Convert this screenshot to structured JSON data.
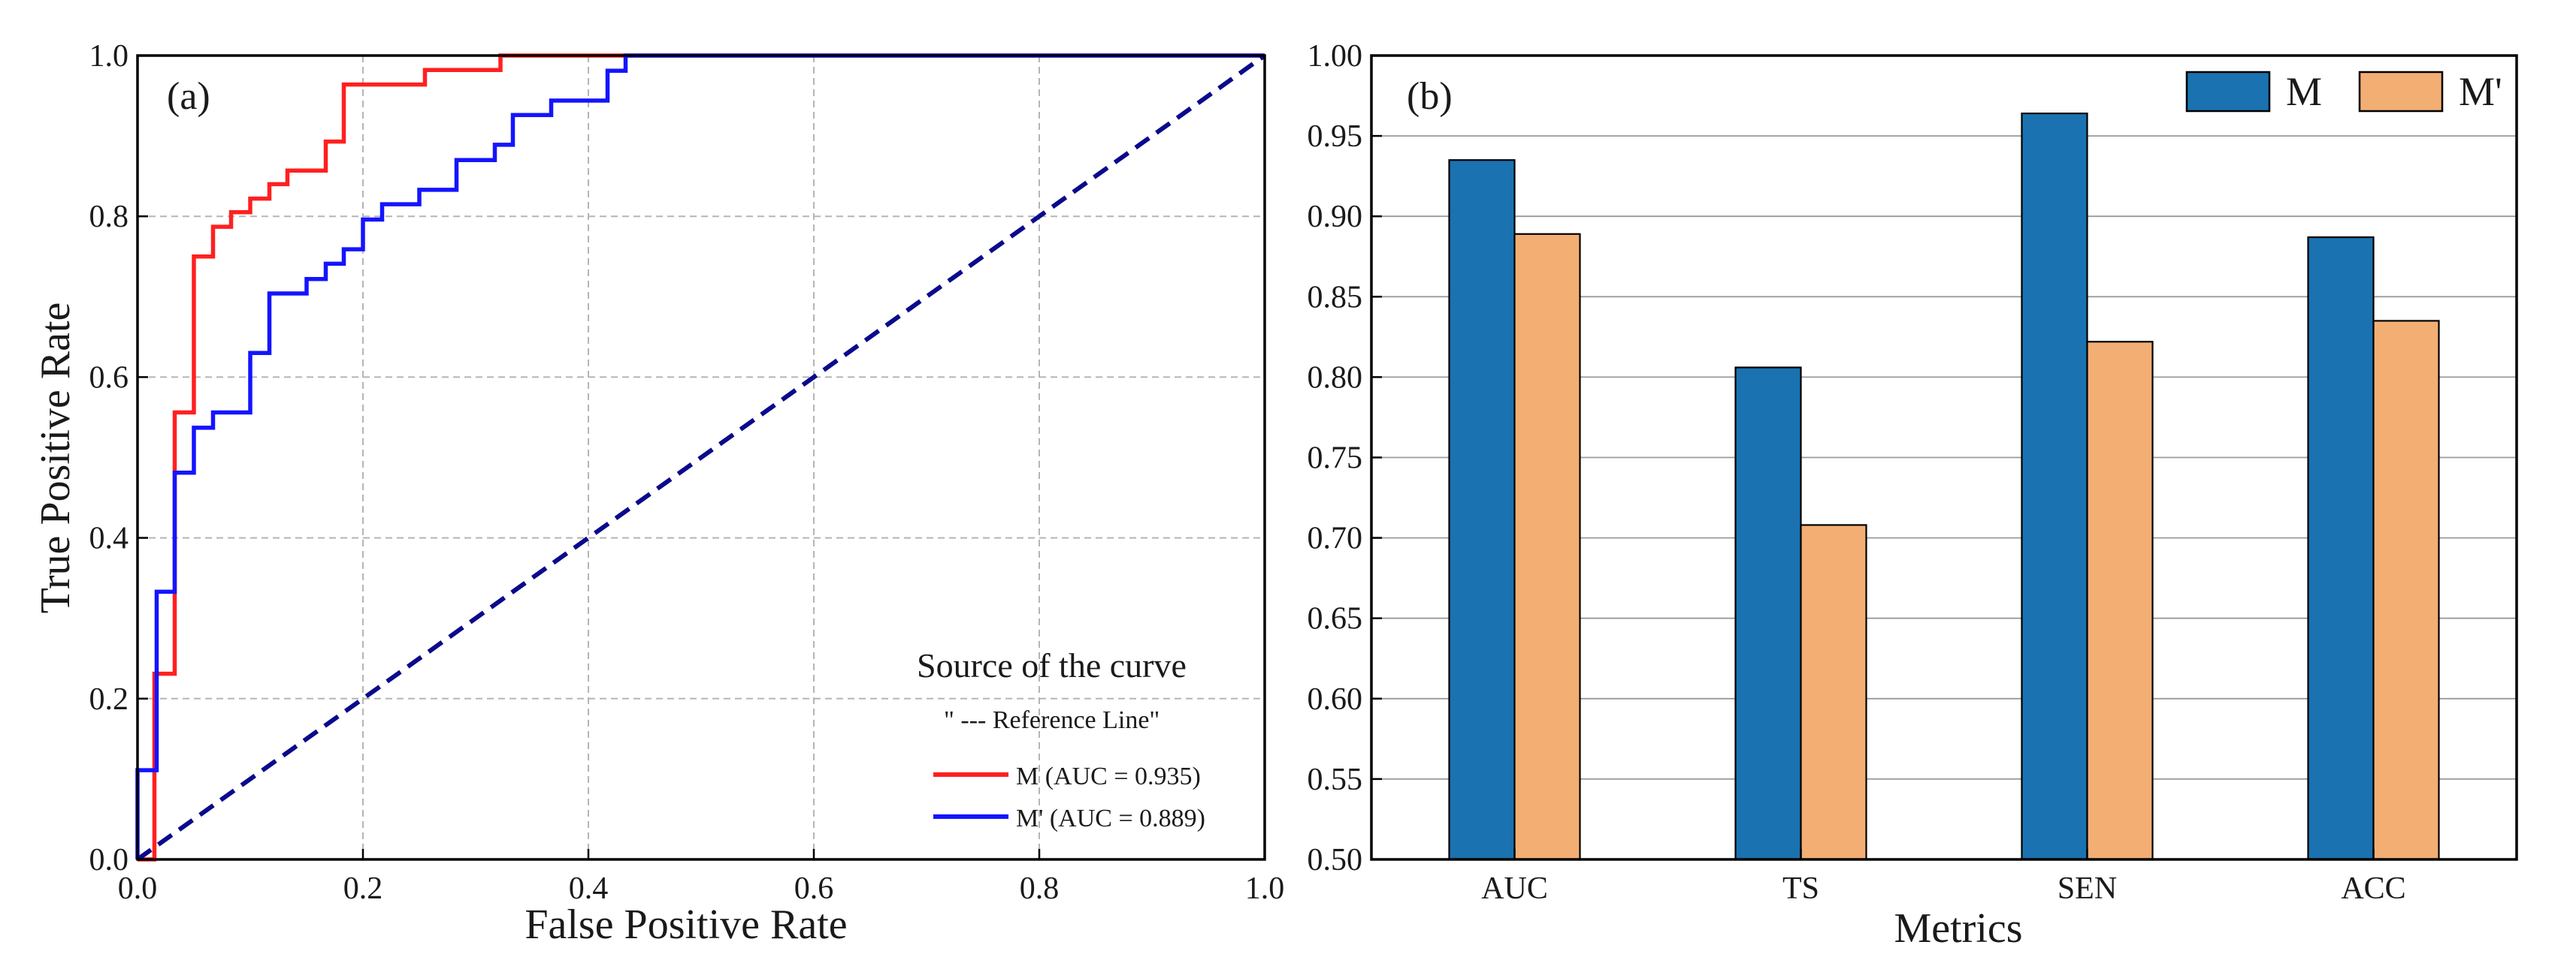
{
  "chart_data": [
    {
      "panel_label": "(a)",
      "type": "line",
      "xlabel": "False Positive Rate",
      "ylabel": "True Positive Rate",
      "xlim": [
        0.0,
        1.0
      ],
      "ylim": [
        0.0,
        1.0
      ],
      "xticks": [
        0.0,
        0.2,
        0.4,
        0.6,
        0.8,
        1.0
      ],
      "xtick_labels": [
        "0.0",
        "0.2",
        "0.4",
        "0.6",
        "0.8",
        "1.0"
      ],
      "yticks": [
        0.0,
        0.2,
        0.4,
        0.6,
        0.8,
        1.0
      ],
      "ytick_labels": [
        "0.0",
        "0.2",
        "0.4",
        "0.6",
        "0.8",
        "1.0"
      ],
      "grid": true,
      "legend": {
        "title": "Source of the curve",
        "reference_text": "\" --- Reference Line\"",
        "placement": "bottom-right",
        "entries": [
          "M (AUC = 0.935)",
          "M' (AUC = 0.889)"
        ]
      },
      "series": [
        {
          "name": "M (AUC = 0.935)",
          "color": "#ff2020",
          "points": [
            [
              0.0,
              0.0
            ],
            [
              0.015,
              0.0
            ],
            [
              0.015,
              0.231
            ],
            [
              0.033,
              0.231
            ],
            [
              0.033,
              0.556
            ],
            [
              0.05,
              0.556
            ],
            [
              0.05,
              0.75
            ],
            [
              0.067,
              0.75
            ],
            [
              0.067,
              0.787
            ],
            [
              0.083,
              0.787
            ],
            [
              0.083,
              0.805
            ],
            [
              0.1,
              0.805
            ],
            [
              0.1,
              0.822
            ],
            [
              0.117,
              0.822
            ],
            [
              0.117,
              0.84
            ],
            [
              0.133,
              0.84
            ],
            [
              0.133,
              0.857
            ],
            [
              0.167,
              0.857
            ],
            [
              0.167,
              0.893
            ],
            [
              0.183,
              0.893
            ],
            [
              0.183,
              0.964
            ],
            [
              0.255,
              0.964
            ],
            [
              0.255,
              0.982
            ],
            [
              0.322,
              0.982
            ],
            [
              0.322,
              1.0
            ],
            [
              1.0,
              1.0
            ]
          ]
        },
        {
          "name": "M' (AUC = 0.889)",
          "color": "#1414ff",
          "points": [
            [
              0.0,
              0.0
            ],
            [
              0.0,
              0.111
            ],
            [
              0.017,
              0.111
            ],
            [
              0.017,
              0.333
            ],
            [
              0.033,
              0.333
            ],
            [
              0.033,
              0.481
            ],
            [
              0.05,
              0.481
            ],
            [
              0.05,
              0.537
            ],
            [
              0.067,
              0.537
            ],
            [
              0.067,
              0.556
            ],
            [
              0.1,
              0.556
            ],
            [
              0.1,
              0.63
            ],
            [
              0.117,
              0.63
            ],
            [
              0.117,
              0.704
            ],
            [
              0.15,
              0.704
            ],
            [
              0.15,
              0.722
            ],
            [
              0.167,
              0.722
            ],
            [
              0.167,
              0.741
            ],
            [
              0.183,
              0.741
            ],
            [
              0.183,
              0.759
            ],
            [
              0.2,
              0.759
            ],
            [
              0.2,
              0.796
            ],
            [
              0.217,
              0.796
            ],
            [
              0.217,
              0.815
            ],
            [
              0.25,
              0.815
            ],
            [
              0.25,
              0.833
            ],
            [
              0.283,
              0.833
            ],
            [
              0.283,
              0.87
            ],
            [
              0.317,
              0.87
            ],
            [
              0.317,
              0.889
            ],
            [
              0.333,
              0.889
            ],
            [
              0.333,
              0.926
            ],
            [
              0.367,
              0.926
            ],
            [
              0.367,
              0.944
            ],
            [
              0.417,
              0.944
            ],
            [
              0.417,
              0.981
            ],
            [
              0.433,
              0.981
            ],
            [
              0.433,
              1.0
            ],
            [
              1.0,
              1.0
            ]
          ]
        },
        {
          "name": "Reference Line",
          "color": "#0a0a8c",
          "dashed": true,
          "points": [
            [
              0.0,
              0.0
            ],
            [
              1.0,
              1.0
            ]
          ]
        }
      ]
    },
    {
      "panel_label": "(b)",
      "type": "bar",
      "xlabel": "Metrics",
      "ylabel": "",
      "categories": [
        "AUC",
        "TS",
        "SEN",
        "ACC"
      ],
      "ylim": [
        0.5,
        1.0
      ],
      "yticks": [
        0.5,
        0.55,
        0.6,
        0.65,
        0.7,
        0.75,
        0.8,
        0.85,
        0.9,
        0.95,
        1.0
      ],
      "ytick_labels": [
        "0.50",
        "0.55",
        "0.60",
        "0.65",
        "0.70",
        "0.75",
        "0.80",
        "0.85",
        "0.90",
        "0.95",
        "1.00"
      ],
      "grid": true,
      "legend": {
        "placement": "top-right"
      },
      "series": [
        {
          "name": "M",
          "color": "#1a72b0",
          "values": [
            0.935,
            0.806,
            0.964,
            0.887
          ]
        },
        {
          "name": "M'",
          "color": "#f3ae74",
          "values": [
            0.889,
            0.708,
            0.822,
            0.835
          ]
        }
      ]
    }
  ]
}
